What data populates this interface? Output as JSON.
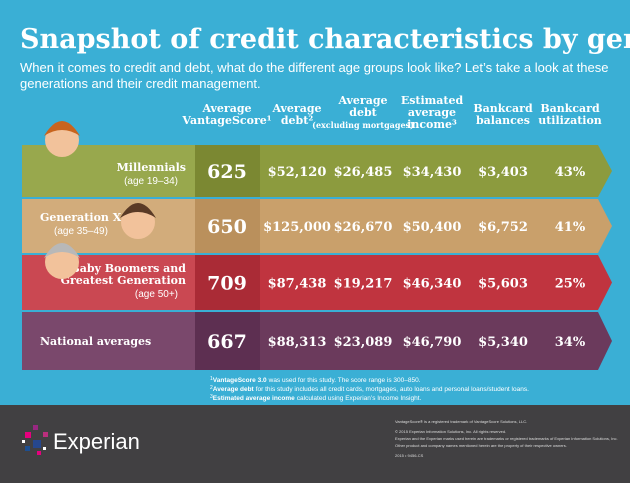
{
  "header": {
    "title": "Snapshot of credit characteristics by generations",
    "subtitle": [
      "When it comes to credit and debt, what do the different age groups look like? Let’s take a look at these",
      "generations and their credit management."
    ]
  },
  "table": {
    "columns": [
      [
        "Average",
        "VantageScore¹"
      ],
      [
        "Average",
        "debt²"
      ],
      [
        "Average",
        "debt",
        "(excluding mortgages)"
      ],
      [
        "Estimated",
        "average",
        "income³"
      ],
      [
        "Bankcard",
        "balances"
      ],
      [
        "Bankcard",
        "utilization"
      ]
    ],
    "rows": [
      {
        "label": [
          "Millennials"
        ],
        "sublabel": "(age 19–34)",
        "values": [
          "625",
          "$52,120",
          "$26,485",
          "$34,430",
          "$3,403",
          "43%"
        ]
      },
      {
        "label": [
          "Generation X"
        ],
        "sublabel": "(age 35–49)",
        "values": [
          "650",
          "$125,000",
          "$26,670",
          "$50,400",
          "$6,752",
          "41%"
        ]
      },
      {
        "label": [
          "Baby Boomers and",
          "Greatest Generation"
        ],
        "sublabel": "(age 50+)",
        "values": [
          "709",
          "$87,438",
          "$19,217",
          "$46,340",
          "$5,603",
          "25%"
        ]
      },
      {
        "label": [
          "National averages"
        ],
        "values": [
          "667",
          "$88,313",
          "$23,089",
          "$46,790",
          "$5,340",
          "34%"
        ]
      }
    ]
  },
  "footnotes": [
    {
      "mark": "1",
      "term": "VantageScore 3.0",
      "text": "was used for this study. The score range is 300–850."
    },
    {
      "mark": "2",
      "term": "Average debt",
      "text": "for this study includes all credit cards, mortgages, auto loans and personal loans/student loans."
    },
    {
      "mark": "3",
      "term": "Estimated average income",
      "text": "calculated using Experian’s Income Insight."
    }
  ],
  "footer": {
    "logo": "Experian",
    "legal": [
      "VantageScore® is a registered trademark of VantageScore Solutions, LLC.",
      "© 2015 Experian Information Solutions, Inc. All rights reserved.",
      "Experian and the Experian marks used herein are trademarks or registered trademarks of Experian Information Solutions, Inc.",
      "Other product and company names mentioned herein are the property of their respective owners.",
      "2015 • 9456-CS"
    ]
  }
}
